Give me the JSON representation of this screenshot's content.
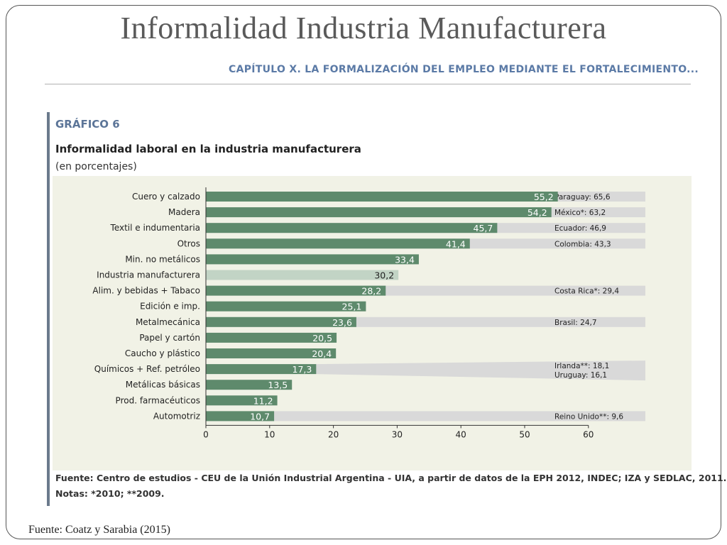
{
  "slide": {
    "title": "Informalidad Industria Manufacturera",
    "chapter_header": "CAPÍTULO X.  LA FORMALIZACIÓN DEL EMPLEO MEDIANTE EL FORTALECIMIENTO...",
    "footer": "Fuente: Coatz y Sarabia (2015)"
  },
  "figure": {
    "label": "GRÁFICO 6",
    "title": "Informalidad laboral en la industria manufacturera",
    "subtitle": "(en porcentajes)",
    "source": "Fuente: Centro de estudios - CEU de la Unión Industrial Argentina - UIA, a partir de datos de la EPH 2012, INDEC; IZA y SEDLAC, 2011.",
    "notes": "Notas: *2010; **2009."
  },
  "colors": {
    "bar": "#5e8a6c",
    "bar_highlight": "#c2d4c5",
    "comparison_band": "#d9d9d9",
    "plot_background": "#f1f2e6",
    "title_text": "#5a5a5a",
    "chapter_text": "#5b7aa6"
  },
  "chart_data": {
    "type": "bar",
    "orientation": "horizontal",
    "categories": [
      "Cuero y calzado",
      "Madera",
      "Textil e indumentaria",
      "Otros",
      "Min. no metálicos",
      "Industria manufacturera",
      "Alim. y bebidas + Tabaco",
      "Edición e imp.",
      "Metalmecánica",
      "Papel y cartón",
      "Caucho y plástico",
      "Químicos + Ref. petróleo",
      "Metálicas básicas",
      "Prod. farmacéuticos",
      "Automotriz"
    ],
    "values": [
      55.2,
      54.2,
      45.7,
      41.4,
      33.4,
      30.2,
      28.2,
      25.1,
      23.6,
      20.5,
      20.4,
      17.3,
      13.5,
      11.2,
      10.7
    ],
    "value_labels": [
      "55,2",
      "54,2",
      "45,7",
      "41,4",
      "33,4",
      "30,2",
      "28,2",
      "25,1",
      "23,6",
      "20,5",
      "20,4",
      "17,3",
      "13,5",
      "11,2",
      "10,7"
    ],
    "highlight_category": "Industria manufacturera",
    "comparisons": [
      {
        "category": "Cuero y calzado",
        "label": "Paraguay: 65,6"
      },
      {
        "category": "Madera",
        "label": "México*: 63,2"
      },
      {
        "category": "Textil e indumentaria",
        "label": "Ecuador: 46,9"
      },
      {
        "category": "Otros",
        "label": "Colombia: 43,3"
      },
      {
        "category": "Alim. y bebidas + Tabaco",
        "label": "Costa Rica*: 29,4"
      },
      {
        "category": "Metalmecánica",
        "label": "Brasil: 24,7"
      },
      {
        "category": "Químicos + Ref. petróleo",
        "label": "Irlanda**: 18,1",
        "label2": "Uruguay: 16,1"
      },
      {
        "category": "Automotriz",
        "label": "Reino Unido**: 9,6"
      }
    ],
    "xlim": [
      0,
      60
    ],
    "xticks": [
      0,
      10,
      20,
      30,
      40,
      50,
      60
    ],
    "grid": false
  }
}
